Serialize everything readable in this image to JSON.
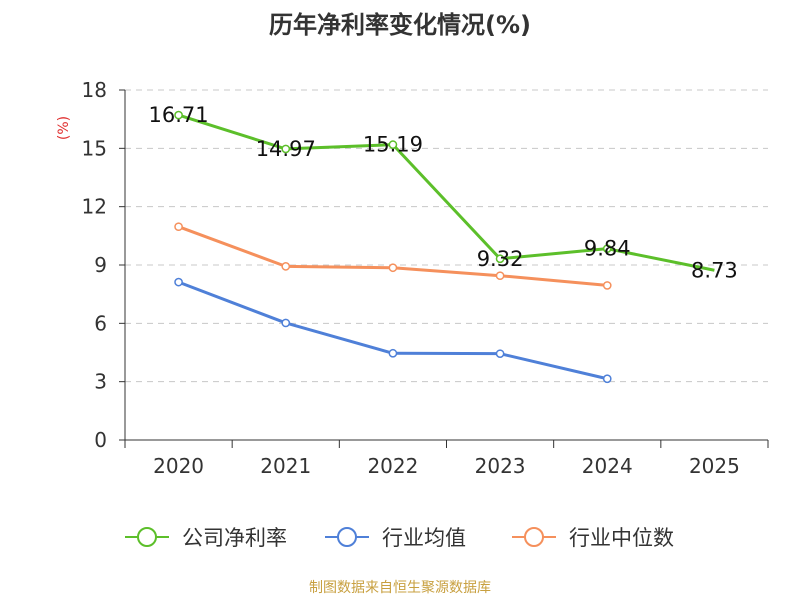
{
  "source": "制图数据来自恒生聚源数据库",
  "chart_data": {
    "type": "line",
    "title": "历年净利率变化情况(%)",
    "unit_label": "(%)",
    "categories": [
      "2020",
      "2021",
      "2022",
      "2023",
      "2024",
      "2025"
    ],
    "ylim": [
      0,
      18
    ],
    "yticks": [
      0,
      3,
      6,
      9,
      12,
      15,
      18
    ],
    "grid": true,
    "legend_position": "bottom",
    "series": [
      {
        "name": "公司净利率",
        "color": "#5cbf2a",
        "values": [
          16.71,
          14.97,
          15.19,
          9.32,
          9.84,
          8.73
        ],
        "labels": [
          "16.71",
          "14.97",
          "15.19",
          "9.32",
          "9.84",
          "8.73"
        ],
        "show_labels": true
      },
      {
        "name": "行业均值",
        "color": "#4f80d8",
        "values": [
          8.12,
          6.02,
          4.46,
          4.44,
          3.15,
          null
        ],
        "show_labels": false
      },
      {
        "name": "行业中位数",
        "color": "#f5905c",
        "values": [
          10.97,
          8.93,
          8.86,
          8.45,
          7.95,
          null
        ],
        "show_labels": false
      }
    ]
  }
}
